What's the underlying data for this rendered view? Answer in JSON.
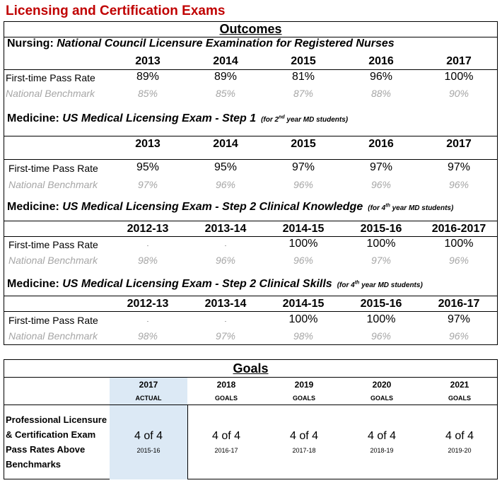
{
  "title": "Licensing and Certification Exams",
  "outcomes": {
    "heading": "Outcomes",
    "sections": [
      {
        "name_prefix": "Nursing: ",
        "name_italic": "National Council Licensure Examination for Registered Nurses",
        "note_pre": "",
        "note_sup": "",
        "note_post": "",
        "years": [
          "2013",
          "2014",
          "2015",
          "2016",
          "2017"
        ],
        "pass_label": "First-time Pass Rate",
        "pass_values": [
          "89%",
          "89%",
          "81%",
          "96%",
          "100%"
        ],
        "bench_label": "National Benchmark",
        "bench_values": [
          "85%",
          "85%",
          "87%",
          "88%",
          "90%"
        ]
      },
      {
        "name_prefix": "Medicine: ",
        "name_italic": "US Medical Licensing Exam - Step 1",
        "note_pre": "(for 2",
        "note_sup": "nd",
        "note_post": " year MD students)",
        "years": [
          "2013",
          "2014",
          "2015",
          "2016",
          "2017"
        ],
        "pass_label": "First-time Pass Rate",
        "pass_values": [
          "95%",
          "95%",
          "97%",
          "97%",
          "97%"
        ],
        "bench_label": "National Benchmark",
        "bench_values": [
          "97%",
          "96%",
          "96%",
          "96%",
          "96%"
        ]
      },
      {
        "name_prefix": "Medicine: ",
        "name_italic": "US Medical Licensing Exam - Step 2 Clinical Knowledge",
        "note_pre": "(for 4",
        "note_sup": "th",
        "note_post": " year MD students)",
        "years": [
          "2012-13",
          "2013-14",
          "2014-15",
          "2015-16",
          "2016-2017"
        ],
        "pass_label": "First-time Pass Rate",
        "pass_values": [
          ".",
          ".",
          "100%",
          "100%",
          "100%"
        ],
        "bench_label": "National Benchmark",
        "bench_values": [
          "98%",
          "96%",
          "96%",
          "97%",
          "96%"
        ]
      },
      {
        "name_prefix": "Medicine: ",
        "name_italic": "US Medical Licensing Exam - Step 2 Clinical Skills",
        "note_pre": "(for 4",
        "note_sup": "th",
        "note_post": " year MD students)",
        "years": [
          "2012-13",
          "2013-14",
          "2014-15",
          "2015-16",
          "2016-17"
        ],
        "pass_label": "First-time Pass Rate",
        "pass_values": [
          ".",
          ".",
          "100%",
          "100%",
          "97%"
        ],
        "bench_label": "National Benchmark",
        "bench_values": [
          "98%",
          "97%",
          "98%",
          "96%",
          "96%"
        ]
      }
    ]
  },
  "goals": {
    "heading": "Goals",
    "row_label": "Professional Licensure & Certification Exam Pass Rates Above Benchmarks",
    "columns": [
      {
        "year": "2017",
        "sub": "ACTUAL",
        "value": "4 of 4",
        "period": "2015-16"
      },
      {
        "year": "2018",
        "sub": "GOALS",
        "value": "4 of 4",
        "period": "2016-17"
      },
      {
        "year": "2019",
        "sub": "GOALS",
        "value": "4 of 4",
        "period": "2017-18"
      },
      {
        "year": "2020",
        "sub": "GOALS",
        "value": "4 of 4",
        "period": "2018-19"
      },
      {
        "year": "2021",
        "sub": "GOALS",
        "value": "4 of 4",
        "period": "2019-20"
      }
    ]
  }
}
